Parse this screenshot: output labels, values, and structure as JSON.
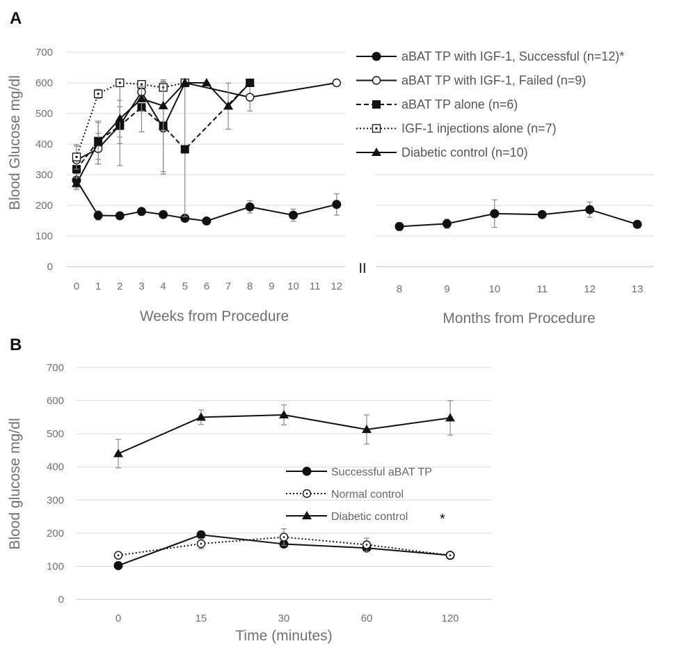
{
  "figure": {
    "panel_a_letter": "A",
    "panel_b_letter": "B",
    "axis_break_mark": "II"
  },
  "chart_data": [
    {
      "panel": "A-left",
      "type": "line",
      "ylabel": "Blood Glucose mg/dl",
      "xlabel": "Weeks from Procedure",
      "ylim": [
        0,
        700
      ],
      "yticks": [
        0,
        100,
        200,
        300,
        400,
        500,
        600,
        700
      ],
      "xticks": [
        0,
        1,
        2,
        3,
        4,
        5,
        6,
        7,
        8,
        9,
        10,
        11,
        12
      ],
      "grid": true,
      "legend_position": "top-right",
      "series": [
        {
          "name": "aBAT TP with IGF-1, Successful (n=12)*",
          "style": "solid",
          "marker": "circle-filled",
          "x": [
            0,
            1,
            2,
            3,
            4,
            5,
            6,
            8,
            10,
            12
          ],
          "y": [
            282,
            167,
            166,
            180,
            170,
            158,
            149,
            195,
            168,
            203
          ],
          "err": [
            25,
            15,
            10,
            10,
            10,
            10,
            8,
            20,
            20,
            35
          ]
        },
        {
          "name": "aBAT TP with IGF-1, Failed (n=9)",
          "style": "solid",
          "marker": "circle-open",
          "x": [
            0,
            1,
            2,
            3,
            4,
            5,
            8,
            12
          ],
          "y": [
            348,
            385,
            462,
            570,
            452,
            600,
            553,
            600
          ],
          "err": [
            45,
            50,
            60,
            30,
            150,
            0,
            45,
            0
          ]
        },
        {
          "name": "aBAT TP alone (n=6)",
          "style": "dashed",
          "marker": "square-filled",
          "x": [
            0,
            1,
            2,
            3,
            4,
            5,
            8
          ],
          "y": [
            318,
            410,
            460,
            520,
            460,
            383,
            600
          ],
          "err": [
            50,
            60,
            130,
            80,
            150,
            220,
            0
          ]
        },
        {
          "name": "IGF-1 injections alone (n=7)",
          "style": "dotted",
          "marker": "square-open",
          "x": [
            0,
            1,
            2,
            3,
            4,
            5
          ],
          "y": [
            358,
            564,
            600,
            595,
            585,
            600
          ],
          "err": [
            40,
            15,
            0,
            10,
            10,
            0
          ]
        },
        {
          "name": "Diabetic control (n=10)",
          "style": "solid",
          "marker": "triangle-filled",
          "x": [
            0,
            1,
            2,
            3,
            4,
            5,
            6,
            7,
            8
          ],
          "y": [
            271,
            405,
            483,
            548,
            525,
            600,
            600,
            524,
            600
          ],
          "err": [
            20,
            70,
            60,
            40,
            80,
            0,
            0,
            75,
            0
          ]
        }
      ]
    },
    {
      "panel": "A-right",
      "type": "line",
      "xlabel": "Months from Procedure",
      "xticks": [
        8,
        9,
        10,
        11,
        12,
        13
      ],
      "series": [
        {
          "name": "aBAT TP with IGF-1, Successful (n=12)*",
          "style": "solid",
          "marker": "circle-filled",
          "x": [
            8,
            9,
            10,
            11,
            12,
            13
          ],
          "y": [
            131,
            140,
            173,
            170,
            186,
            138
          ],
          "err": [
            13,
            15,
            45,
            0,
            25,
            0
          ]
        }
      ]
    },
    {
      "panel": "B",
      "type": "line",
      "ylabel": "Blood glucose mg/dl",
      "xlabel": "Time (minutes)",
      "ylim": [
        0,
        700
      ],
      "yticks": [
        0,
        100,
        200,
        300,
        400,
        500,
        600,
        700
      ],
      "categories": [
        "0",
        "15",
        "30",
        "60",
        "120"
      ],
      "grid": true,
      "legend_position": "center-right",
      "series": [
        {
          "name": "Successful aBAT TP",
          "style": "solid",
          "marker": "circle-filled",
          "values": [
            102,
            195,
            167,
            155,
            133
          ],
          "err": [
            0,
            10,
            8,
            10,
            0
          ]
        },
        {
          "name": "Normal control",
          "style": "dotted",
          "marker": "circle-open-dot",
          "values": [
            133,
            168,
            188,
            165,
            133
          ],
          "err": [
            0,
            15,
            25,
            20,
            0
          ]
        },
        {
          "name": "Diabetic control",
          "style": "solid",
          "marker": "triangle-filled",
          "values": [
            440,
            550,
            557,
            513,
            548
          ],
          "err": [
            43,
            22,
            30,
            44,
            52
          ]
        }
      ],
      "annotation": "*"
    }
  ]
}
